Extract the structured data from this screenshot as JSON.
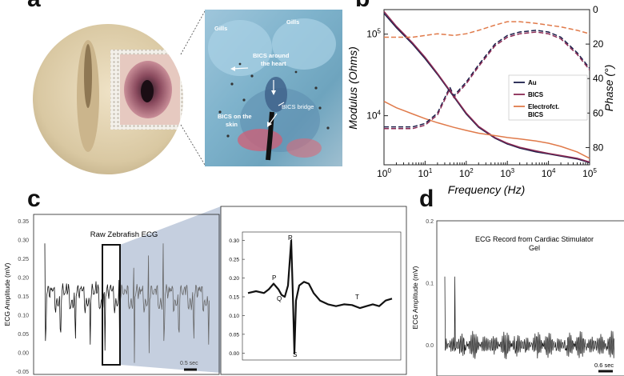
{
  "panels": {
    "a": {
      "letter": "a"
    },
    "b": {
      "letter": "b"
    },
    "c": {
      "letter": "c"
    },
    "d": {
      "letter": "d"
    }
  },
  "panel_a_labels": {
    "gills_left": "Gills",
    "gills_right": "Gills",
    "bics_heart_line1": "BICS around",
    "bics_heart_line2": "the heart",
    "bics_bridge": "BICS bridge",
    "bics_skin_line1": "BICS on the",
    "bics_skin_line2": "skin"
  },
  "colors": {
    "au": "#1c1f4a",
    "bics": "#8b2a54",
    "electrofct": "#e07a4a",
    "trace": "#111111",
    "trace_grey": "#666666",
    "zoom_fill": "#c5cfdf"
  },
  "chart_data": [
    {
      "panel": "b",
      "type": "line",
      "xlabel": "Frequency (Hz)",
      "ylabel": "Modulus (Ohms)",
      "ylabel_right": "Phase (°)",
      "x_scale": "log",
      "y_scale": "log",
      "xlim": [
        1,
        100000
      ],
      "ylim": [
        2500,
        200000
      ],
      "y_right_lim": [
        90,
        0
      ],
      "x_ticks": [
        "10^0",
        "10^1",
        "10^2",
        "10^3",
        "10^4",
        "10^5"
      ],
      "y_ticks": [
        "10^4",
        "10^5"
      ],
      "y_right_ticks": [
        "0",
        "20",
        "40",
        "60",
        "80"
      ],
      "legend": [
        "Au",
        "BICS",
        "Electrofct.",
        "BICS"
      ],
      "legend_position": "right",
      "series": [
        {
          "name": "Au",
          "axis": "left",
          "style": "solid",
          "x": [
            1,
            2,
            5,
            10,
            20,
            50,
            100,
            200,
            500,
            1000,
            2000,
            5000,
            10000,
            20000,
            50000,
            100000
          ],
          "y": [
            180000,
            120000,
            75000,
            50000,
            32000,
            17000,
            10500,
            7200,
            5300,
            4500,
            4000,
            3600,
            3400,
            3200,
            2950,
            2650
          ]
        },
        {
          "name": "BICS",
          "axis": "left",
          "style": "solid",
          "x": [
            1,
            2,
            5,
            10,
            20,
            50,
            100,
            200,
            500,
            1000,
            2000,
            5000,
            10000,
            20000,
            50000,
            100000
          ],
          "y": [
            190000,
            125000,
            78000,
            52000,
            33000,
            17500,
            10800,
            7400,
            5400,
            4600,
            4100,
            3700,
            3450,
            3250,
            3000,
            2700
          ]
        },
        {
          "name": "Electrofct. BICS",
          "axis": "left",
          "style": "solid",
          "x": [
            1,
            2,
            5,
            10,
            20,
            50,
            100,
            200,
            500,
            1000,
            2000,
            5000,
            10000,
            20000,
            50000,
            100000
          ],
          "y": [
            15000,
            12500,
            10500,
            9200,
            8200,
            7200,
            6600,
            6100,
            5700,
            5400,
            5200,
            4900,
            4600,
            4200,
            3600,
            3000
          ]
        },
        {
          "name": "Au",
          "axis": "right",
          "style": "dashed",
          "x": [
            1,
            2,
            5,
            10,
            20,
            40,
            50,
            100,
            200,
            500,
            1000,
            2000,
            5000,
            10000,
            20000,
            50000,
            100000
          ],
          "y": [
            68,
            68,
            68,
            66,
            60,
            45,
            50,
            42,
            32,
            20,
            15,
            13,
            12,
            13,
            16,
            25,
            34
          ]
        },
        {
          "name": "BICS",
          "axis": "right",
          "style": "dashed",
          "x": [
            1,
            2,
            5,
            10,
            20,
            40,
            50,
            100,
            200,
            500,
            1000,
            2000,
            5000,
            10000,
            20000,
            50000,
            100000
          ],
          "y": [
            69,
            69,
            69,
            67,
            61,
            46,
            51,
            43,
            33,
            21,
            16,
            14,
            13,
            14,
            17,
            26,
            35
          ]
        },
        {
          "name": "Electrofct. BICS",
          "axis": "right",
          "style": "dashed",
          "x": [
            1,
            2,
            5,
            10,
            20,
            50,
            100,
            200,
            500,
            1000,
            2000,
            5000,
            10000,
            20000,
            50000,
            100000
          ],
          "y": [
            16,
            16,
            16,
            15,
            14,
            15,
            14,
            12,
            9,
            7,
            7,
            8,
            9,
            10,
            12,
            14
          ]
        }
      ]
    },
    {
      "panel": "c",
      "type": "line",
      "title": "Raw Zebrafish ECG",
      "ylabel": "ECG Amplitude (mV)",
      "ylim": [
        -0.05,
        0.35
      ],
      "y_ticks": [
        "0.35",
        "0.30",
        "0.25",
        "0.20",
        "0.15",
        "0.10",
        "0.05",
        "0.00",
        "-0.05"
      ],
      "scale_bar": "0.5 sec",
      "inset_y_ticks": [
        "0.30",
        "0.25",
        "0.20",
        "0.15",
        "0.10",
        "0.05",
        "0.00"
      ],
      "inset_ylim": [
        -0.01,
        0.31
      ],
      "inset_annotations": [
        "P",
        "Q",
        "R",
        "S",
        "T"
      ]
    },
    {
      "panel": "d",
      "type": "line",
      "title_line1": "ECG Record from Cardiac Stimulator",
      "title_line2": "Gel",
      "ylabel": "ECG Amplitude (mV)",
      "ylim": [
        -0.05,
        0.2
      ],
      "y_ticks": [
        "0.2",
        "0.1",
        "0.0"
      ],
      "scale_bar": "0.6 sec"
    }
  ]
}
